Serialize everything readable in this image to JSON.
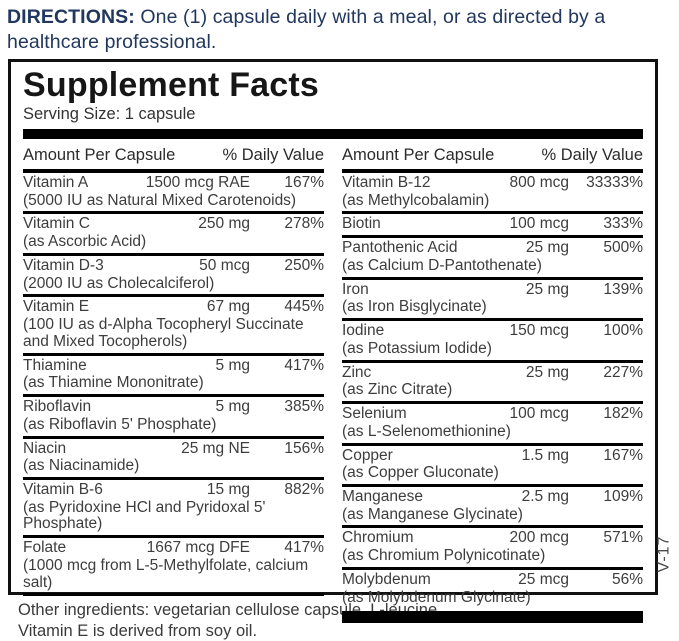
{
  "directions": {
    "label": "DIRECTIONS:",
    "text": " One (1) capsule daily with a meal, or as directed by a healthcare professional."
  },
  "panel": {
    "title": "Supplement Facts",
    "serving_size": "Serving Size: 1 capsule",
    "col_header_amount": "Amount Per Capsule",
    "col_header_dv": "% Daily Value",
    "left_rows": [
      {
        "name": "Vitamin A",
        "amount": "1500 mcg RAE",
        "dv": "167%",
        "detail": "(5000 IU as Natural Mixed Carotenoids)"
      },
      {
        "name": "Vitamin C",
        "amount": "250 mg",
        "dv": "278%",
        "detail": "(as Ascorbic Acid)"
      },
      {
        "name": "Vitamin D-3",
        "amount": "50 mcg",
        "dv": "250%",
        "detail": "(2000 IU as Cholecalciferol)"
      },
      {
        "name": "Vitamin E",
        "amount": "67 mg",
        "dv": "445%",
        "detail": "(100 IU as d-Alpha Tocopheryl Succinate and Mixed Tocopherols)"
      },
      {
        "name": "Thiamine",
        "amount": "5 mg",
        "dv": "417%",
        "detail": "(as Thiamine Mononitrate)"
      },
      {
        "name": "Riboflavin",
        "amount": "5 mg",
        "dv": "385%",
        "detail": "(as Riboflavin 5' Phosphate)"
      },
      {
        "name": "Niacin",
        "amount": "25 mg NE",
        "dv": "156%",
        "detail": "(as Niacinamide)"
      },
      {
        "name": "Vitamin B-6",
        "amount": "15 mg",
        "dv": "882%",
        "detail": "(as Pyridoxine HCl and Pyridoxal 5' Phosphate)"
      },
      {
        "name": "Folate",
        "amount": "1667 mcg DFE",
        "dv": "417%",
        "detail": "(1000 mcg from L-5-Methylfolate, calcium salt)"
      }
    ],
    "right_rows": [
      {
        "name": "Vitamin B-12",
        "amount": "800 mcg",
        "dv": "33333%",
        "detail": "(as Methylcobalamin)"
      },
      {
        "name": "Biotin",
        "amount": "100 mcg",
        "dv": "333%",
        "detail": ""
      },
      {
        "name": "Pantothenic Acid",
        "amount": "25 mg",
        "dv": "500%",
        "detail": "(as Calcium D-Pantothenate)"
      },
      {
        "name": "Iron",
        "amount": "25 mg",
        "dv": "139%",
        "detail": "(as Iron Bisglycinate)"
      },
      {
        "name": "Iodine",
        "amount": "150 mcg",
        "dv": "100%",
        "detail": "(as Potassium Iodide)"
      },
      {
        "name": "Zinc",
        "amount": "25 mg",
        "dv": "227%",
        "detail": "(as Zinc Citrate)"
      },
      {
        "name": "Selenium",
        "amount": "100 mcg",
        "dv": "182%",
        "detail": "(as L-Selenomethionine)"
      },
      {
        "name": "Copper",
        "amount": "1.5 mg",
        "dv": "167%",
        "detail": "(as Copper Gluconate)"
      },
      {
        "name": "Manganese",
        "amount": "2.5 mg",
        "dv": "109%",
        "detail": "(as Manganese Glycinate)"
      },
      {
        "name": "Chromium",
        "amount": "200 mcg",
        "dv": "571%",
        "detail": "(as Chromium Polynicotinate)"
      },
      {
        "name": "Molybdenum",
        "amount": "25 mcg",
        "dv": "56%",
        "detail": "(as Molybdenum Glycinate)"
      }
    ]
  },
  "footer": {
    "line1": "Other ingredients: vegetarian cellulose capsule, L-leucine.",
    "line2": "Vitamin E is derived from soy oil."
  },
  "side_code": "V-17",
  "colors": {
    "directions_navy": "#21375d",
    "body_text": "#3d3d3d",
    "rule_black": "#000000"
  }
}
